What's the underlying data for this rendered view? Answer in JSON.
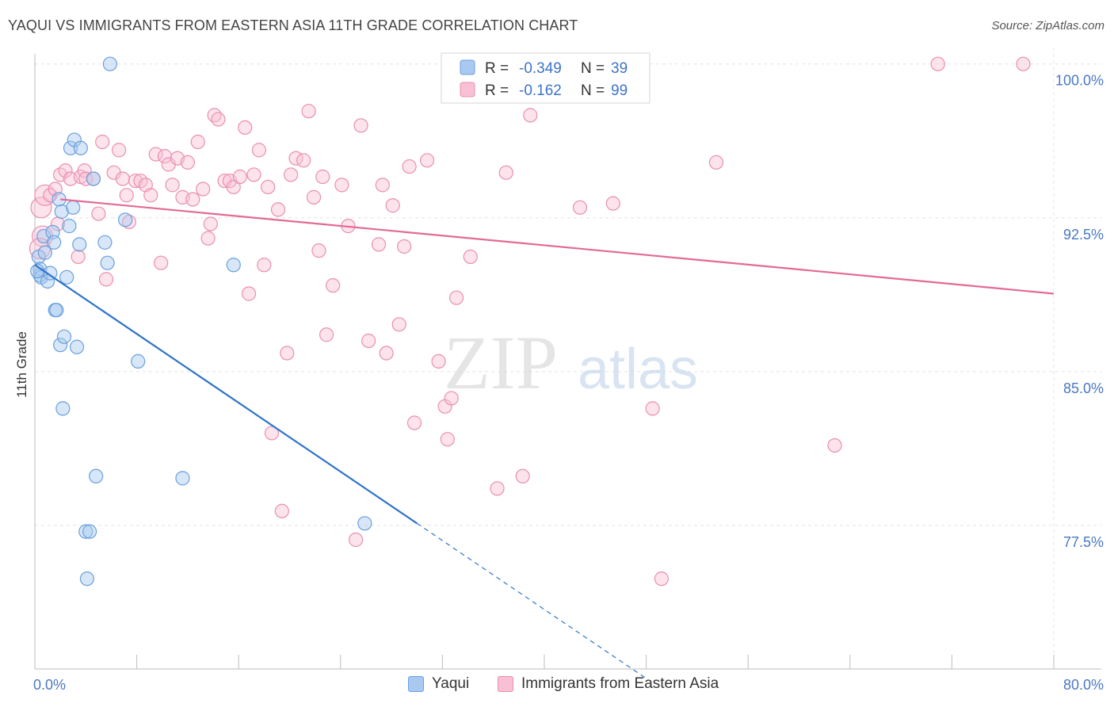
{
  "title": "YAQUI VS IMMIGRANTS FROM EASTERN ASIA 11TH GRADE CORRELATION CHART",
  "source": "Source: ZipAtlas.com",
  "watermark": {
    "zip": "ZIP",
    "atlas": "atlas"
  },
  "colors": {
    "yaqui_fill": "#a9c9f0",
    "yaqui_stroke": "#6a9fdd",
    "yaqui_line": "#2f73c9",
    "eastasia_fill": "#f8c0d4",
    "eastasia_stroke": "#e98fb0",
    "eastasia_line": "#e26a96",
    "grid": "#e4e4e4",
    "tick_label": "#4a78c4"
  },
  "chart_data": {
    "type": "scatter",
    "xlabel": "",
    "ylabel": "11th Grade",
    "xlim": [
      0,
      80
    ],
    "ylim": [
      70.5,
      100.8
    ],
    "x_tick_labels": [
      "0.0%",
      "80.0%"
    ],
    "y_ticks": [
      {
        "value": 100.0,
        "label": "100.0%"
      },
      {
        "value": 92.5,
        "label": "92.5%"
      },
      {
        "value": 85.0,
        "label": "85.0%"
      },
      {
        "value": 77.5,
        "label": "77.5%"
      }
    ],
    "grid": true,
    "legend_placement": "top-center",
    "stats": [
      {
        "r_label": "R =",
        "r_value": "-0.349",
        "n_label": "N =",
        "n_value": "39"
      },
      {
        "r_label": "R =",
        "r_value": "-0.162",
        "n_label": "N =",
        "n_value": "99"
      }
    ],
    "series": [
      {
        "name": "Yaqui",
        "trend": {
          "x": [
            0,
            30
          ],
          "y": [
            90.2,
            77.6
          ],
          "dashed_to_x": 48
        },
        "points": [
          [
            0.3,
            90.6
          ],
          [
            0.4,
            90.0
          ],
          [
            0.4,
            89.7
          ],
          [
            0.5,
            89.6
          ],
          [
            0.7,
            91.6
          ],
          [
            0.8,
            90.8
          ],
          [
            1.0,
            89.4
          ],
          [
            1.2,
            89.8
          ],
          [
            1.4,
            91.8
          ],
          [
            1.5,
            91.3
          ],
          [
            1.6,
            88.0
          ],
          [
            1.7,
            88.0
          ],
          [
            1.9,
            93.4
          ],
          [
            2.0,
            86.3
          ],
          [
            2.1,
            92.8
          ],
          [
            2.2,
            83.2
          ],
          [
            2.3,
            86.7
          ],
          [
            2.5,
            89.6
          ],
          [
            2.7,
            92.1
          ],
          [
            2.8,
            95.9
          ],
          [
            3.0,
            93.0
          ],
          [
            3.1,
            96.3
          ],
          [
            3.3,
            86.2
          ],
          [
            3.5,
            91.2
          ],
          [
            3.6,
            95.9
          ],
          [
            4.0,
            77.2
          ],
          [
            4.3,
            77.2
          ],
          [
            4.6,
            94.4
          ],
          [
            4.8,
            79.9
          ],
          [
            4.1,
            74.9
          ],
          [
            5.5,
            91.3
          ],
          [
            5.7,
            90.3
          ],
          [
            5.9,
            100.0
          ],
          [
            7.1,
            92.4
          ],
          [
            8.1,
            85.5
          ],
          [
            11.6,
            79.8
          ],
          [
            15.6,
            90.2
          ],
          [
            25.9,
            77.6
          ],
          [
            0.2,
            89.9
          ]
        ]
      },
      {
        "name": "Immigrants from Eastern Asia",
        "trend": {
          "x": [
            2,
            80
          ],
          "y": [
            93.4,
            88.8
          ]
        },
        "points": [
          [
            0.5,
            93.0
          ],
          [
            0.6,
            91.6
          ],
          [
            0.8,
            93.6
          ],
          [
            1.2,
            93.6
          ],
          [
            1.6,
            93.9
          ],
          [
            1.8,
            92.2
          ],
          [
            2.0,
            94.6
          ],
          [
            2.4,
            94.8
          ],
          [
            2.8,
            94.4
          ],
          [
            3.4,
            90.6
          ],
          [
            3.6,
            94.5
          ],
          [
            3.9,
            94.8
          ],
          [
            4.0,
            94.4
          ],
          [
            4.6,
            94.4
          ],
          [
            5.0,
            92.7
          ],
          [
            5.3,
            96.2
          ],
          [
            5.6,
            89.5
          ],
          [
            6.2,
            94.7
          ],
          [
            6.6,
            95.8
          ],
          [
            6.9,
            94.4
          ],
          [
            7.2,
            93.6
          ],
          [
            7.4,
            92.3
          ],
          [
            7.9,
            94.3
          ],
          [
            8.3,
            94.3
          ],
          [
            8.7,
            94.1
          ],
          [
            9.1,
            93.6
          ],
          [
            9.5,
            95.6
          ],
          [
            9.9,
            90.3
          ],
          [
            10.2,
            95.5
          ],
          [
            10.5,
            95.1
          ],
          [
            10.8,
            94.1
          ],
          [
            11.2,
            95.4
          ],
          [
            11.6,
            93.5
          ],
          [
            12.0,
            95.2
          ],
          [
            12.4,
            93.4
          ],
          [
            12.8,
            96.2
          ],
          [
            13.2,
            93.9
          ],
          [
            13.6,
            91.5
          ],
          [
            13.8,
            92.2
          ],
          [
            14.1,
            97.5
          ],
          [
            14.4,
            97.3
          ],
          [
            14.9,
            94.3
          ],
          [
            15.3,
            94.3
          ],
          [
            15.6,
            94.0
          ],
          [
            16.1,
            94.5
          ],
          [
            16.5,
            96.9
          ],
          [
            16.8,
            88.8
          ],
          [
            17.2,
            94.6
          ],
          [
            17.6,
            95.8
          ],
          [
            18.0,
            90.2
          ],
          [
            18.3,
            94.0
          ],
          [
            18.6,
            82.0
          ],
          [
            19.1,
            92.9
          ],
          [
            19.4,
            78.2
          ],
          [
            19.8,
            85.9
          ],
          [
            20.1,
            94.6
          ],
          [
            20.5,
            95.4
          ],
          [
            21.1,
            95.3
          ],
          [
            21.5,
            97.7
          ],
          [
            21.9,
            93.5
          ],
          [
            22.3,
            90.9
          ],
          [
            22.6,
            94.5
          ],
          [
            22.9,
            86.8
          ],
          [
            23.4,
            89.2
          ],
          [
            24.1,
            94.1
          ],
          [
            24.6,
            92.1
          ],
          [
            25.2,
            76.8
          ],
          [
            25.6,
            97.0
          ],
          [
            26.2,
            86.5
          ],
          [
            27.0,
            91.2
          ],
          [
            27.3,
            94.1
          ],
          [
            27.6,
            85.9
          ],
          [
            28.1,
            93.1
          ],
          [
            28.6,
            87.3
          ],
          [
            29.0,
            91.1
          ],
          [
            29.4,
            95.0
          ],
          [
            29.8,
            82.5
          ],
          [
            30.8,
            95.3
          ],
          [
            31.7,
            85.5
          ],
          [
            32.2,
            83.3
          ],
          [
            32.4,
            81.7
          ],
          [
            32.7,
            83.7
          ],
          [
            33.1,
            88.6
          ],
          [
            34.2,
            90.6
          ],
          [
            36.3,
            79.3
          ],
          [
            37.0,
            94.7
          ],
          [
            38.0,
            100.0
          ],
          [
            38.3,
            79.9
          ],
          [
            38.9,
            97.5
          ],
          [
            42.6,
            100.0
          ],
          [
            42.8,
            93.0
          ],
          [
            45.4,
            93.2
          ],
          [
            48.5,
            83.2
          ],
          [
            49.2,
            74.9
          ],
          [
            53.5,
            95.2
          ],
          [
            62.8,
            81.4
          ],
          [
            70.9,
            100.0
          ],
          [
            77.6,
            100.0
          ],
          [
            0.4,
            91.0
          ]
        ]
      }
    ]
  }
}
